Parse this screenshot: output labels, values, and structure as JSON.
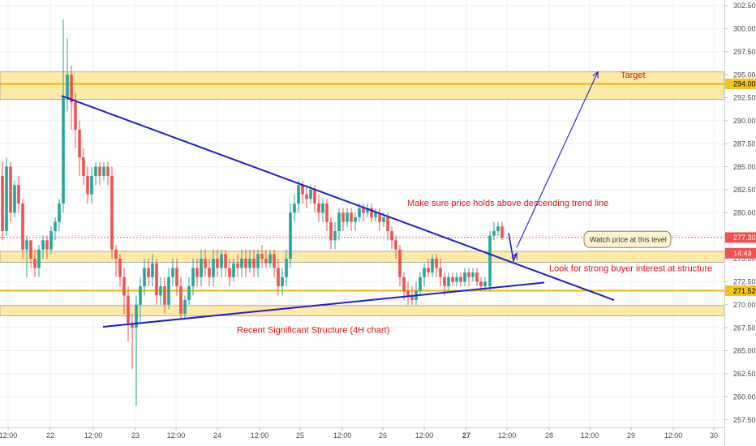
{
  "chart_data": {
    "type": "candlestick",
    "ylim": [
      256.5,
      303.5
    ],
    "xlim": [
      0,
      932
    ],
    "y_ticks": [
      "302.50",
      "300.00",
      "297.50",
      "295.00",
      "292.50",
      "290.00",
      "287.50",
      "285.00",
      "282.50",
      "280.00",
      "277.50",
      "275.00",
      "272.50",
      "270.00",
      "267.50",
      "265.00",
      "262.50",
      "260.00",
      "257.50"
    ],
    "x_ticks": [
      {
        "label": "12:00",
        "x": 10
      },
      {
        "label": "22",
        "x": 62
      },
      {
        "label": "12:00",
        "x": 115
      },
      {
        "label": "23",
        "x": 167
      },
      {
        "label": "12:00",
        "x": 217
      },
      {
        "label": "24",
        "x": 268
      },
      {
        "label": "12:00",
        "x": 320
      },
      {
        "label": "25",
        "x": 370
      },
      {
        "label": "12:00",
        "x": 422
      },
      {
        "label": "26",
        "x": 472
      },
      {
        "label": "12:00",
        "x": 523
      },
      {
        "label": "27",
        "x": 575,
        "bold": true
      },
      {
        "label": "12:00",
        "x": 625
      },
      {
        "label": "28",
        "x": 677
      },
      {
        "label": "12:00",
        "x": 727
      },
      {
        "label": "29",
        "x": 778
      },
      {
        "label": "12:00",
        "x": 830
      },
      {
        "label": "30",
        "x": 880
      }
    ],
    "price_tags": [
      {
        "label": "294.00",
        "value": 294.0,
        "bg": "#f5c518",
        "fg": "#000000"
      },
      {
        "label": "277.30",
        "value": 277.3,
        "bg": "#ef5350",
        "fg": "#ffffff"
      },
      {
        "label": "14:43",
        "value": 275.6,
        "bg": "#ef5350",
        "fg": "#ffffff"
      },
      {
        "label": "271.52",
        "value": 271.52,
        "bg": "#f5c518",
        "fg": "#000000"
      }
    ],
    "zones": [
      {
        "from": 292.3,
        "to": 295.3
      },
      {
        "from": 274.6,
        "to": 275.8
      },
      {
        "from": 268.8,
        "to": 269.9
      }
    ],
    "horizontal_lines": [
      {
        "value": 294.0,
        "color": "#f0b400"
      },
      {
        "value": 271.52,
        "color": "#f0b400"
      },
      {
        "value": 277.3,
        "color": "#ef5350",
        "dashed": true
      }
    ],
    "trend_lines": [
      {
        "name": "descending",
        "p1": [
          76,
          292.7
        ],
        "p2": [
          757,
          270.5
        ]
      },
      {
        "name": "ascending",
        "p1": [
          127,
          267.6
        ],
        "p2": [
          671,
          272.4
        ]
      }
    ],
    "arrows": [
      {
        "points": [
          [
            627,
            277.8
          ],
          [
            633,
            274.8
          ],
          [
            637,
            275.6
          ]
        ]
      },
      {
        "points": [
          [
            637,
            276.2
          ],
          [
            737,
            295.3
          ]
        ]
      }
    ],
    "annotations": [
      {
        "text": "Target",
        "x": 765,
        "value": 295.0
      },
      {
        "text": "Make sure price holds above descending trend line",
        "x": 502,
        "value": 281.1
      },
      {
        "text": "Watch price at this level",
        "x": 724,
        "value": 277.1,
        "callout": true
      },
      {
        "text": "Look for strong buyer interest at structure",
        "x": 677,
        "value": 274.0
      },
      {
        "text": "Recent Significant Structure (4H chart)",
        "x": 292,
        "value": 267.3
      }
    ],
    "colors": {
      "up": "#26a69a",
      "down": "#ef5350",
      "trend": "#1e1ecc",
      "zone": "#fde9a8",
      "text": "#e01010"
    },
    "candles": [
      {
        "x": 3,
        "o": 284,
        "c": 278,
        "h": 285.5,
        "l": 277
      },
      {
        "x": 8,
        "o": 278,
        "c": 285,
        "h": 286,
        "l": 277.5
      },
      {
        "x": 13,
        "o": 285,
        "c": 280,
        "h": 285.5,
        "l": 279
      },
      {
        "x": 18,
        "o": 280,
        "c": 283,
        "h": 283.5,
        "l": 279.5
      },
      {
        "x": 23,
        "o": 283,
        "c": 281,
        "h": 284,
        "l": 280
      },
      {
        "x": 28,
        "o": 281,
        "c": 276,
        "h": 281.5,
        "l": 275
      },
      {
        "x": 33,
        "o": 276,
        "c": 277,
        "h": 277.5,
        "l": 273
      },
      {
        "x": 38,
        "o": 277,
        "c": 275,
        "h": 277,
        "l": 274
      },
      {
        "x": 43,
        "o": 275,
        "c": 274,
        "h": 276,
        "l": 273
      },
      {
        "x": 48,
        "o": 274,
        "c": 276,
        "h": 276.5,
        "l": 273
      },
      {
        "x": 53,
        "o": 276,
        "c": 277,
        "h": 277.5,
        "l": 275
      },
      {
        "x": 58,
        "o": 277,
        "c": 276,
        "h": 277.5,
        "l": 275
      },
      {
        "x": 63,
        "o": 276,
        "c": 278,
        "h": 278.5,
        "l": 275.5
      },
      {
        "x": 68,
        "o": 278,
        "c": 279,
        "h": 279.5,
        "l": 277
      },
      {
        "x": 73,
        "o": 279,
        "c": 281,
        "h": 281.5,
        "l": 278
      },
      {
        "x": 78,
        "o": 281,
        "c": 292.5,
        "h": 301,
        "l": 280
      },
      {
        "x": 83,
        "o": 292.5,
        "c": 295,
        "h": 299,
        "l": 291
      },
      {
        "x": 88,
        "o": 295,
        "c": 292,
        "h": 296,
        "l": 289
      },
      {
        "x": 93,
        "o": 292,
        "c": 289,
        "h": 293,
        "l": 287
      },
      {
        "x": 98,
        "o": 289,
        "c": 286,
        "h": 290,
        "l": 284
      },
      {
        "x": 103,
        "o": 286,
        "c": 284,
        "h": 287,
        "l": 283
      },
      {
        "x": 108,
        "o": 284,
        "c": 282,
        "h": 285,
        "l": 281
      },
      {
        "x": 113,
        "o": 282,
        "c": 284,
        "h": 285,
        "l": 281
      },
      {
        "x": 118,
        "o": 284,
        "c": 285,
        "h": 285.5,
        "l": 283
      },
      {
        "x": 123,
        "o": 285,
        "c": 284,
        "h": 285.5,
        "l": 283
      },
      {
        "x": 128,
        "o": 284,
        "c": 285,
        "h": 285.5,
        "l": 283.5
      },
      {
        "x": 133,
        "o": 285,
        "c": 284,
        "h": 285.5,
        "l": 283
      },
      {
        "x": 138,
        "o": 284,
        "c": 276,
        "h": 285,
        "l": 275
      },
      {
        "x": 143,
        "o": 276,
        "c": 275,
        "h": 276.5,
        "l": 273
      },
      {
        "x": 148,
        "o": 275,
        "c": 273,
        "h": 275.5,
        "l": 272
      },
      {
        "x": 153,
        "o": 273,
        "c": 271,
        "h": 274,
        "l": 269
      },
      {
        "x": 158,
        "o": 271,
        "c": 268,
        "h": 272,
        "l": 266
      },
      {
        "x": 163,
        "o": 268,
        "c": 267.5,
        "h": 269,
        "l": 263
      },
      {
        "x": 168,
        "o": 267.5,
        "c": 270,
        "h": 271,
        "l": 259
      },
      {
        "x": 173,
        "o": 270,
        "c": 272,
        "h": 273,
        "l": 268
      },
      {
        "x": 178,
        "o": 272,
        "c": 274,
        "h": 275,
        "l": 271
      },
      {
        "x": 183,
        "o": 274,
        "c": 273,
        "h": 275,
        "l": 272
      },
      {
        "x": 188,
        "o": 273,
        "c": 274.5,
        "h": 275.5,
        "l": 272
      },
      {
        "x": 193,
        "o": 274.5,
        "c": 271,
        "h": 275,
        "l": 270
      },
      {
        "x": 198,
        "o": 271,
        "c": 272,
        "h": 273,
        "l": 270
      },
      {
        "x": 203,
        "o": 272,
        "c": 270,
        "h": 273,
        "l": 269
      },
      {
        "x": 208,
        "o": 270,
        "c": 273,
        "h": 274,
        "l": 269.5
      },
      {
        "x": 213,
        "o": 273,
        "c": 274,
        "h": 275,
        "l": 272
      },
      {
        "x": 218,
        "o": 274,
        "c": 272,
        "h": 275,
        "l": 271
      },
      {
        "x": 223,
        "o": 272,
        "c": 269,
        "h": 273,
        "l": 268.5
      },
      {
        "x": 228,
        "o": 269,
        "c": 270.5,
        "h": 271,
        "l": 268.5
      },
      {
        "x": 233,
        "o": 270.5,
        "c": 272,
        "h": 273,
        "l": 270
      },
      {
        "x": 238,
        "o": 272,
        "c": 274,
        "h": 275,
        "l": 271
      },
      {
        "x": 243,
        "o": 274,
        "c": 273,
        "h": 275,
        "l": 272
      },
      {
        "x": 248,
        "o": 273,
        "c": 275,
        "h": 276,
        "l": 272
      },
      {
        "x": 253,
        "o": 275,
        "c": 274,
        "h": 276,
        "l": 273
      },
      {
        "x": 258,
        "o": 274,
        "c": 273,
        "h": 275,
        "l": 272
      },
      {
        "x": 263,
        "o": 273,
        "c": 275,
        "h": 276,
        "l": 272
      },
      {
        "x": 268,
        "o": 275,
        "c": 274,
        "h": 276,
        "l": 273
      },
      {
        "x": 273,
        "o": 274,
        "c": 275.5,
        "h": 276,
        "l": 273
      },
      {
        "x": 278,
        "o": 275.5,
        "c": 274,
        "h": 276,
        "l": 273
      },
      {
        "x": 283,
        "o": 274,
        "c": 273,
        "h": 275,
        "l": 272
      },
      {
        "x": 288,
        "o": 273,
        "c": 274.5,
        "h": 275,
        "l": 272.5
      },
      {
        "x": 293,
        "o": 274.5,
        "c": 274,
        "h": 275.5,
        "l": 273
      },
      {
        "x": 298,
        "o": 274,
        "c": 275,
        "h": 276,
        "l": 273
      },
      {
        "x": 303,
        "o": 275,
        "c": 274,
        "h": 276,
        "l": 273
      },
      {
        "x": 308,
        "o": 274,
        "c": 275,
        "h": 276,
        "l": 273.5
      },
      {
        "x": 313,
        "o": 275,
        "c": 274,
        "h": 276,
        "l": 273
      },
      {
        "x": 318,
        "o": 274,
        "c": 275.5,
        "h": 276,
        "l": 273
      },
      {
        "x": 323,
        "o": 275.5,
        "c": 275,
        "h": 276.5,
        "l": 274
      },
      {
        "x": 328,
        "o": 275,
        "c": 274.5,
        "h": 276,
        "l": 274
      },
      {
        "x": 333,
        "o": 274.5,
        "c": 275.5,
        "h": 276,
        "l": 274
      },
      {
        "x": 338,
        "o": 275.5,
        "c": 274,
        "h": 276,
        "l": 273
      },
      {
        "x": 343,
        "o": 274,
        "c": 272,
        "h": 275,
        "l": 271
      },
      {
        "x": 348,
        "o": 272,
        "c": 273,
        "h": 274,
        "l": 271
      },
      {
        "x": 353,
        "o": 273,
        "c": 275,
        "h": 276,
        "l": 272
      },
      {
        "x": 358,
        "o": 275,
        "c": 280,
        "h": 281,
        "l": 274
      },
      {
        "x": 363,
        "o": 280,
        "c": 281,
        "h": 282,
        "l": 279
      },
      {
        "x": 368,
        "o": 281,
        "c": 283,
        "h": 283.5,
        "l": 280
      },
      {
        "x": 373,
        "o": 283,
        "c": 282,
        "h": 283.5,
        "l": 281
      },
      {
        "x": 378,
        "o": 282,
        "c": 281.5,
        "h": 283,
        "l": 280.5
      },
      {
        "x": 383,
        "o": 281.5,
        "c": 282.5,
        "h": 283,
        "l": 281
      },
      {
        "x": 388,
        "o": 282.5,
        "c": 281,
        "h": 283,
        "l": 280
      },
      {
        "x": 393,
        "o": 281,
        "c": 280,
        "h": 282,
        "l": 279
      },
      {
        "x": 398,
        "o": 280,
        "c": 281,
        "h": 281.5,
        "l": 279
      },
      {
        "x": 403,
        "o": 281,
        "c": 279,
        "h": 281.5,
        "l": 278
      },
      {
        "x": 408,
        "o": 279,
        "c": 277,
        "h": 279.5,
        "l": 276
      },
      {
        "x": 413,
        "o": 277,
        "c": 278,
        "h": 279,
        "l": 276
      },
      {
        "x": 418,
        "o": 278,
        "c": 280,
        "h": 280.5,
        "l": 277
      },
      {
        "x": 423,
        "o": 280,
        "c": 279,
        "h": 280.5,
        "l": 278
      },
      {
        "x": 428,
        "o": 279,
        "c": 280,
        "h": 280.5,
        "l": 278.5
      },
      {
        "x": 433,
        "o": 280,
        "c": 279,
        "h": 280.5,
        "l": 278
      },
      {
        "x": 438,
        "o": 279,
        "c": 279.5,
        "h": 280,
        "l": 278
      },
      {
        "x": 443,
        "o": 279.5,
        "c": 280.5,
        "h": 281,
        "l": 279
      },
      {
        "x": 448,
        "o": 280.5,
        "c": 280,
        "h": 281,
        "l": 279
      },
      {
        "x": 453,
        "o": 280,
        "c": 280.5,
        "h": 281,
        "l": 279.5
      },
      {
        "x": 458,
        "o": 280.5,
        "c": 279.5,
        "h": 281,
        "l": 279
      },
      {
        "x": 463,
        "o": 279.5,
        "c": 280,
        "h": 280.5,
        "l": 279
      },
      {
        "x": 468,
        "o": 280,
        "c": 279,
        "h": 280.5,
        "l": 278
      },
      {
        "x": 473,
        "o": 279,
        "c": 279.5,
        "h": 280,
        "l": 278.5
      },
      {
        "x": 478,
        "o": 279.5,
        "c": 278,
        "h": 280,
        "l": 277
      },
      {
        "x": 483,
        "o": 278,
        "c": 277,
        "h": 278.5,
        "l": 276
      },
      {
        "x": 488,
        "o": 277,
        "c": 276,
        "h": 277.5,
        "l": 275
      },
      {
        "x": 493,
        "o": 276,
        "c": 273,
        "h": 276.5,
        "l": 272
      },
      {
        "x": 498,
        "o": 273,
        "c": 271.5,
        "h": 273.5,
        "l": 270.5
      },
      {
        "x": 503,
        "o": 271.5,
        "c": 271,
        "h": 272.5,
        "l": 270
      },
      {
        "x": 508,
        "o": 271,
        "c": 270.5,
        "h": 272,
        "l": 270
      },
      {
        "x": 513,
        "o": 270.5,
        "c": 271.5,
        "h": 272.5,
        "l": 270
      },
      {
        "x": 518,
        "o": 271.5,
        "c": 273,
        "h": 273.5,
        "l": 271
      },
      {
        "x": 523,
        "o": 273,
        "c": 274,
        "h": 274.5,
        "l": 272
      },
      {
        "x": 528,
        "o": 274,
        "c": 273.5,
        "h": 275,
        "l": 273
      },
      {
        "x": 533,
        "o": 273.5,
        "c": 275,
        "h": 275.5,
        "l": 273
      },
      {
        "x": 538,
        "o": 275,
        "c": 274,
        "h": 275.5,
        "l": 273
      },
      {
        "x": 543,
        "o": 274,
        "c": 273,
        "h": 275,
        "l": 272
      },
      {
        "x": 548,
        "o": 273,
        "c": 272,
        "h": 273.5,
        "l": 271
      },
      {
        "x": 553,
        "o": 272,
        "c": 273,
        "h": 273.5,
        "l": 271.5
      },
      {
        "x": 558,
        "o": 273,
        "c": 272.5,
        "h": 273.5,
        "l": 272
      },
      {
        "x": 563,
        "o": 272.5,
        "c": 273,
        "h": 273.5,
        "l": 272
      },
      {
        "x": 568,
        "o": 273,
        "c": 272.5,
        "h": 273.5,
        "l": 272
      },
      {
        "x": 573,
        "o": 272.5,
        "c": 273.5,
        "h": 274,
        "l": 272
      },
      {
        "x": 578,
        "o": 273.5,
        "c": 273,
        "h": 274,
        "l": 272
      },
      {
        "x": 583,
        "o": 273,
        "c": 273.5,
        "h": 274,
        "l": 272.5
      },
      {
        "x": 588,
        "o": 273.5,
        "c": 272.5,
        "h": 274,
        "l": 272
      },
      {
        "x": 593,
        "o": 272.5,
        "c": 272,
        "h": 273,
        "l": 271.5
      },
      {
        "x": 598,
        "o": 272,
        "c": 272.5,
        "h": 273,
        "l": 271.5
      },
      {
        "x": 604,
        "o": 272,
        "c": 277.5,
        "h": 278,
        "l": 271.5
      },
      {
        "x": 609,
        "o": 277.5,
        "c": 278,
        "h": 279,
        "l": 277
      },
      {
        "x": 614,
        "o": 278,
        "c": 278.5,
        "h": 279,
        "l": 277.5
      },
      {
        "x": 619,
        "o": 278.5,
        "c": 277.3,
        "h": 279,
        "l": 277
      }
    ]
  }
}
